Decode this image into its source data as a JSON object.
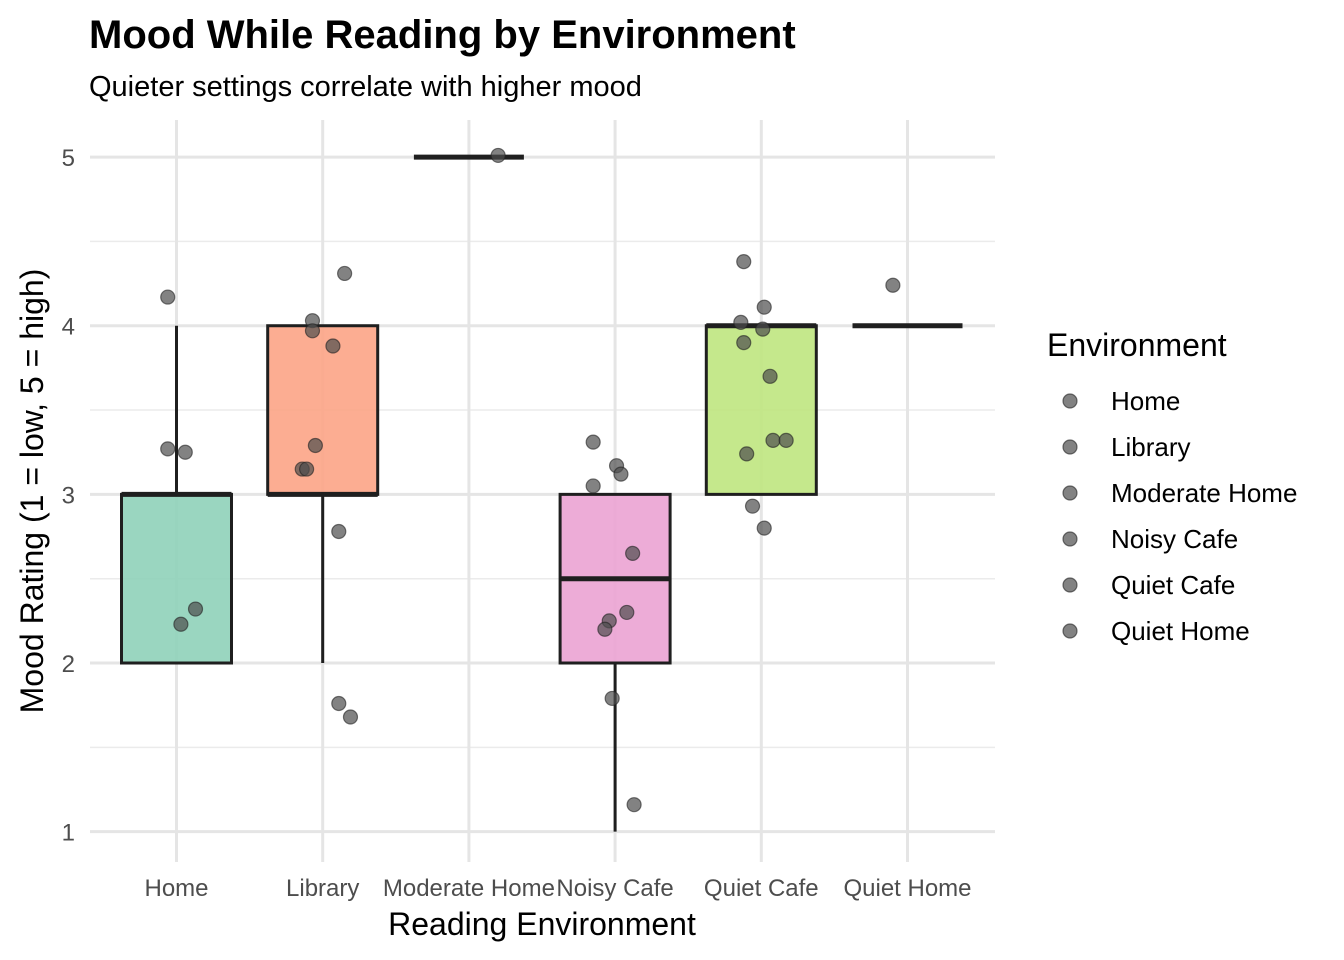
{
  "chart_data": {
    "type": "box",
    "title": "Mood While Reading by Environment",
    "subtitle": "Quieter settings correlate with higher mood",
    "xlabel": "Reading Environment",
    "ylabel": "Mood Rating (1 = low, 5 = high)",
    "ylim": [
      0.82,
      5.22
    ],
    "yticks": [
      1,
      2,
      3,
      4,
      5
    ],
    "grid": true,
    "legend": {
      "title": "Environment",
      "position": "right",
      "entries": [
        "Home",
        "Library",
        "Moderate Home",
        "Noisy Cafe",
        "Quiet Cafe",
        "Quiet Home"
      ]
    },
    "point_color": "#4d4d4d",
    "categories": [
      "Home",
      "Library",
      "Moderate Home",
      "Noisy Cafe",
      "Quiet Cafe",
      "Quiet Home"
    ],
    "boxes": [
      {
        "category": "Home",
        "min": 2,
        "q1": 2,
        "median": 3,
        "q3": 3,
        "max": 4,
        "fill": "#8fd1b9"
      },
      {
        "category": "Library",
        "min": 2,
        "q1": 3,
        "median": 3,
        "q3": 4,
        "max": 4,
        "fill": "#fca486"
      },
      {
        "category": "Moderate Home",
        "min": 5,
        "q1": 5,
        "median": 5,
        "q3": 5,
        "max": 5,
        "fill": "#a3b6db"
      },
      {
        "category": "Noisy Cafe",
        "min": 1,
        "q1": 2,
        "median": 2.5,
        "q3": 3,
        "max": 3,
        "fill": "#eba3d3"
      },
      {
        "category": "Quiet Cafe",
        "min": 3,
        "q1": 3,
        "median": 4,
        "q3": 4,
        "max": 4,
        "fill": "#bfe57f"
      },
      {
        "category": "Quiet Home",
        "min": 4,
        "q1": 4,
        "median": 4,
        "q3": 4,
        "max": 4,
        "fill": "#ffdd55"
      }
    ],
    "points": [
      {
        "category": "Home",
        "x": 0.94,
        "y": 4.17
      },
      {
        "category": "Home",
        "x": 0.94,
        "y": 3.27
      },
      {
        "category": "Home",
        "x": 1.06,
        "y": 3.25
      },
      {
        "category": "Home",
        "x": 1.13,
        "y": 2.32
      },
      {
        "category": "Home",
        "x": 1.03,
        "y": 2.23
      },
      {
        "category": "Library",
        "x": 2.15,
        "y": 4.31
      },
      {
        "category": "Library",
        "x": 1.93,
        "y": 4.03
      },
      {
        "category": "Library",
        "x": 1.93,
        "y": 3.97
      },
      {
        "category": "Library",
        "x": 2.07,
        "y": 3.88
      },
      {
        "category": "Library",
        "x": 1.95,
        "y": 3.29
      },
      {
        "category": "Library",
        "x": 1.86,
        "y": 3.15
      },
      {
        "category": "Library",
        "x": 1.89,
        "y": 3.15
      },
      {
        "category": "Library",
        "x": 2.11,
        "y": 2.78
      },
      {
        "category": "Library",
        "x": 2.11,
        "y": 1.76
      },
      {
        "category": "Library",
        "x": 2.19,
        "y": 1.68
      },
      {
        "category": "Moderate Home",
        "x": 3.2,
        "y": 5.01
      },
      {
        "category": "Noisy Cafe",
        "x": 3.85,
        "y": 3.31
      },
      {
        "category": "Noisy Cafe",
        "x": 4.01,
        "y": 3.17
      },
      {
        "category": "Noisy Cafe",
        "x": 4.04,
        "y": 3.12
      },
      {
        "category": "Noisy Cafe",
        "x": 3.85,
        "y": 3.05
      },
      {
        "category": "Noisy Cafe",
        "x": 4.12,
        "y": 2.65
      },
      {
        "category": "Noisy Cafe",
        "x": 4.08,
        "y": 2.3
      },
      {
        "category": "Noisy Cafe",
        "x": 3.96,
        "y": 2.25
      },
      {
        "category": "Noisy Cafe",
        "x": 3.93,
        "y": 2.2
      },
      {
        "category": "Noisy Cafe",
        "x": 3.98,
        "y": 1.79
      },
      {
        "category": "Noisy Cafe",
        "x": 4.13,
        "y": 1.16
      },
      {
        "category": "Quiet Cafe",
        "x": 4.88,
        "y": 4.38
      },
      {
        "category": "Quiet Cafe",
        "x": 5.02,
        "y": 4.11
      },
      {
        "category": "Quiet Cafe",
        "x": 4.86,
        "y": 4.02
      },
      {
        "category": "Quiet Cafe",
        "x": 5.01,
        "y": 3.98
      },
      {
        "category": "Quiet Cafe",
        "x": 4.88,
        "y": 3.9
      },
      {
        "category": "Quiet Cafe",
        "x": 5.06,
        "y": 3.7
      },
      {
        "category": "Quiet Cafe",
        "x": 5.08,
        "y": 3.32
      },
      {
        "category": "Quiet Cafe",
        "x": 5.17,
        "y": 3.32
      },
      {
        "category": "Quiet Cafe",
        "x": 4.9,
        "y": 3.24
      },
      {
        "category": "Quiet Cafe",
        "x": 4.94,
        "y": 2.93
      },
      {
        "category": "Quiet Cafe",
        "x": 5.02,
        "y": 2.8
      },
      {
        "category": "Quiet Home",
        "x": 5.9,
        "y": 4.24
      }
    ]
  }
}
